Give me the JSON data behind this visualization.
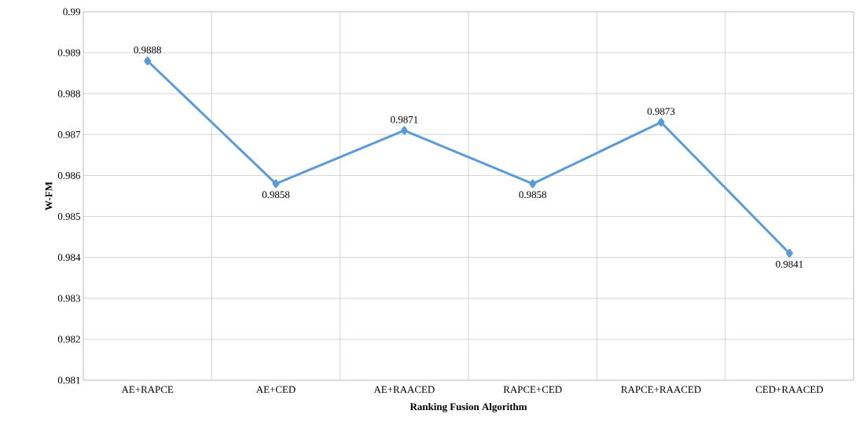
{
  "chart_data": {
    "type": "line",
    "xlabel": "Ranking Fusion Algorithm",
    "ylabel": "W-FM",
    "categories": [
      "AE+RAPCE",
      "AE+CED",
      "AE+RAACED",
      "RAPCE+CED",
      "RAPCE+RAACED",
      "CED+RAACED"
    ],
    "values": [
      0.9888,
      0.9858,
      0.9871,
      0.9858,
      0.9873,
      0.9841
    ],
    "color": "#5b9bd5",
    "marker": "diamond",
    "line_style": "solid",
    "ylim": [
      0.981,
      0.99
    ],
    "yticks": [
      0.981,
      0.982,
      0.983,
      0.984,
      0.985,
      0.986,
      0.987,
      0.988,
      0.989,
      0.99
    ],
    "grid": true,
    "data_labels": true
  }
}
